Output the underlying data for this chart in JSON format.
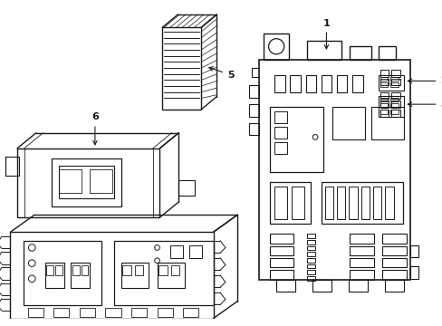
{
  "bg": "#ffffff",
  "lc": "#1a1a1a",
  "lw_main": 1.0,
  "lw_thin": 0.6,
  "fig_w": 4.89,
  "fig_h": 3.6,
  "dpi": 100
}
